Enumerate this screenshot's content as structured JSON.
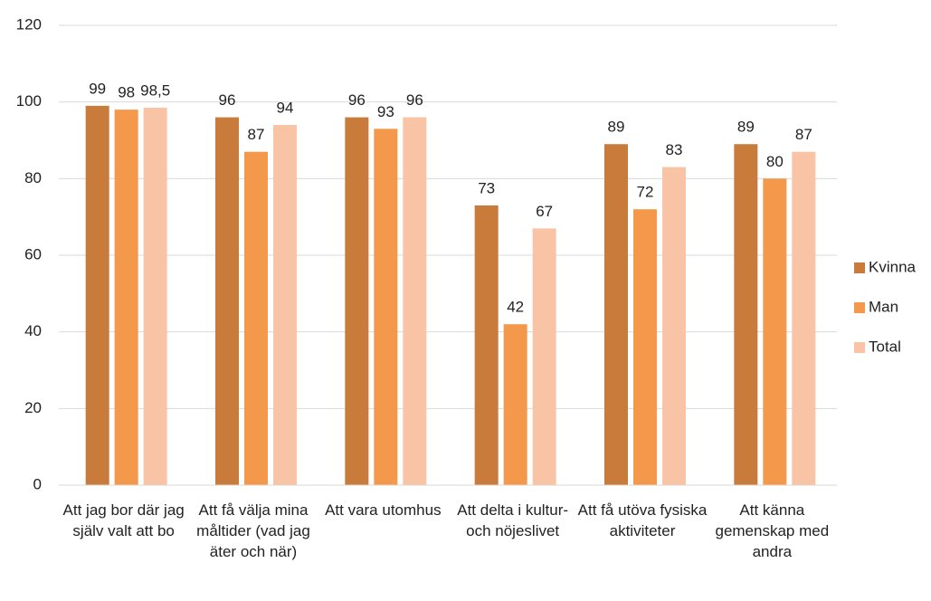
{
  "chart_data": {
    "type": "bar",
    "categories": [
      "Att jag bor där jag själv valt att bo",
      "Att få välja mina måltider (vad jag äter och när)",
      "Att vara utomhus",
      "Att delta i kultur- och nöjeslivet",
      "Att få utöva fysiska aktiviteter",
      "Att känna gemenskap med andra"
    ],
    "series": [
      {
        "name": "Kvinna",
        "color": "#c87b3b",
        "values": [
          99,
          96,
          96,
          73,
          89,
          89
        ]
      },
      {
        "name": "Man",
        "color": "#f4994b",
        "values": [
          98,
          87,
          93,
          42,
          72,
          80
        ]
      },
      {
        "name": "Total",
        "color": "#f9c3a6",
        "values": [
          98.5,
          94,
          96,
          67,
          83,
          87
        ],
        "value_labels": [
          "98,5",
          "94",
          "96",
          "67",
          "83",
          "87"
        ]
      }
    ],
    "ylim": [
      0,
      120
    ],
    "yticks": [
      0,
      20,
      40,
      60,
      80,
      100,
      120
    ],
    "grid": true,
    "legend": "right"
  }
}
